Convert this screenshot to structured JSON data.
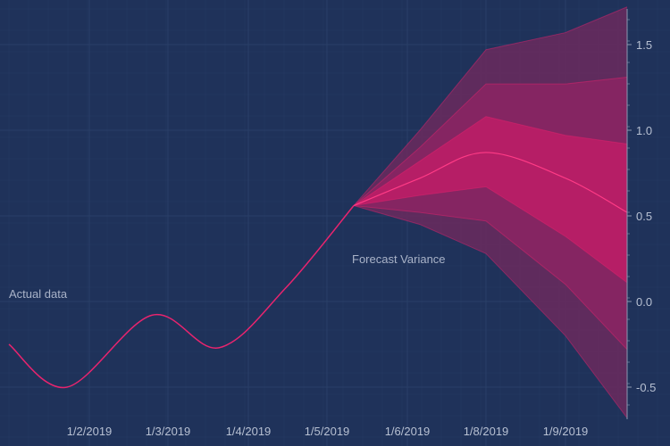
{
  "chart_data": {
    "type": "line",
    "colors": {
      "background": "#1f325a",
      "grid": "#2a3f68",
      "line": "#e8246e",
      "band_outer": "#6b2a5e",
      "band_middle": "#8a2563",
      "band_inner": "#b81e66",
      "tick_label": "#b7c0d2",
      "axis": "#8c98b0"
    },
    "x_ticks": [
      "1/2/2019",
      "1/3/2019",
      "1/4/2019",
      "1/5/2019",
      "1/6/2019",
      "1/8/2019",
      "1/9/2019"
    ],
    "y_ticks": [
      "1.5",
      "1.0",
      "0.5",
      "0.0",
      "-0.5"
    ],
    "ylim": [
      -0.68,
      1.7
    ],
    "annotations": [
      {
        "id": "actual",
        "text": "Actual data"
      },
      {
        "id": "forecast",
        "text": "Forecast Variance"
      }
    ],
    "actual_series": [
      {
        "x": "2019-01-01",
        "y": -0.25
      },
      {
        "x": "2019-01-02",
        "y": -0.5
      },
      {
        "x": "2019-01-03",
        "y": -0.08
      },
      {
        "x": "2019-01-04",
        "y": -0.27
      },
      {
        "x": "2019-01-05",
        "y": 0.08
      },
      {
        "x": "2019-01-06",
        "y": 0.56
      }
    ],
    "forecast_series": {
      "x": [
        "2019-01-06",
        "2019-01-07",
        "2019-01-08",
        "2019-01-09",
        "2019-01-10"
      ],
      "mean": [
        0.56,
        0.72,
        0.87,
        0.72,
        0.52
      ],
      "bands": [
        {
          "level": "outer",
          "upper": [
            0.56,
            1.0,
            1.47,
            1.57,
            1.72
          ],
          "lower": [
            0.56,
            0.45,
            0.28,
            -0.2,
            -0.68
          ]
        },
        {
          "level": "middle",
          "upper": [
            0.56,
            0.9,
            1.27,
            1.27,
            1.31
          ],
          "lower": [
            0.56,
            0.52,
            0.47,
            0.1,
            -0.28
          ]
        },
        {
          "level": "inner",
          "upper": [
            0.56,
            0.82,
            1.08,
            0.97,
            0.92
          ],
          "lower": [
            0.56,
            0.62,
            0.67,
            0.38,
            0.11
          ]
        }
      ]
    }
  }
}
